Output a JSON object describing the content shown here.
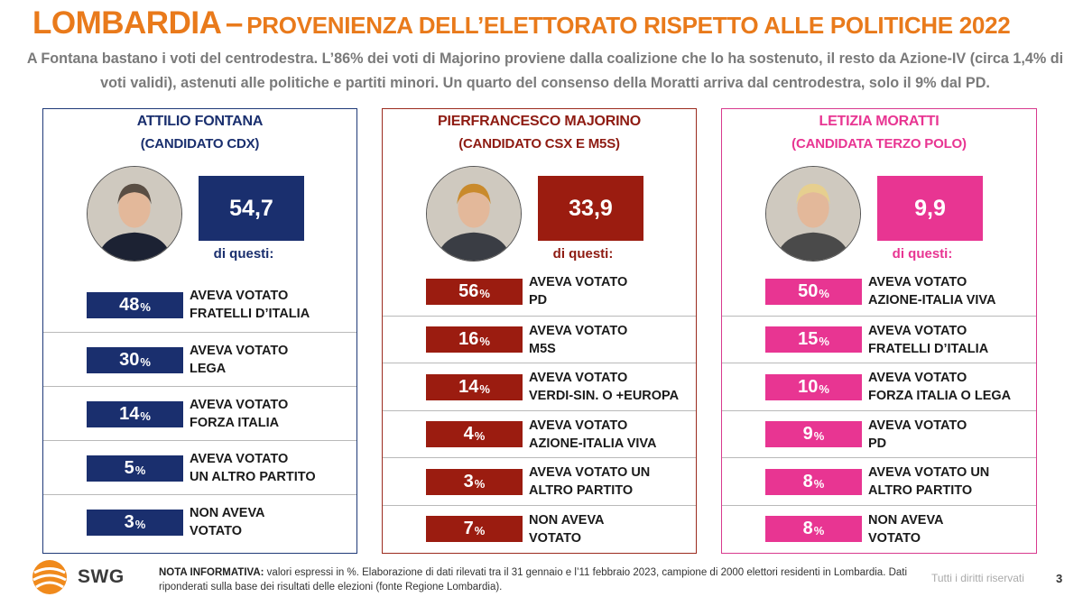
{
  "title": {
    "main": "LOMBARDIA",
    "dash": "–",
    "rest": "PROVENIENZA DELL’ELETTORATO RISPETTO ALLE POLITICHE 2022"
  },
  "subtitle": "A Fontana bastano i voti del centrodestra. L’86% dei voti di Majorino proviene dalla coalizione che lo ha sostenuto, il resto da Azione-IV (circa 1,4% di voti validi), astenuti alle politiche e partiti minori. Un quarto del consenso della Moratti arriva dal centrodestra, solo il 9% dal PD.",
  "colors": {
    "title": "#E97A1B",
    "fontana": "#1A2F6E",
    "majorino": "#9B1C10",
    "moratti": "#E83592"
  },
  "chart_data": [
    {
      "type": "table",
      "candidate": "ATTILIO FONTANA",
      "coalition": "(CANDIDATO CDX)",
      "total": "54,7",
      "of_these": "di questi:",
      "rows": [
        {
          "value": 48,
          "label": "AVEVA VOTATO\nFRATELLI D’ITALIA"
        },
        {
          "value": 30,
          "label": "AVEVA VOTATO\nLEGA"
        },
        {
          "value": 14,
          "label": "AVEVA VOTATO\nFORZA ITALIA"
        },
        {
          "value": 5,
          "label": "AVEVA VOTATO\nUN ALTRO PARTITO"
        },
        {
          "value": 3,
          "label": "NON AVEVA\nVOTATO"
        }
      ]
    },
    {
      "type": "table",
      "candidate": "PIERFRANCESCO MAJORINO",
      "coalition": "(CANDIDATO CSX E M5S)",
      "total": "33,9",
      "of_these": "di questi:",
      "rows": [
        {
          "value": 56,
          "label": "AVEVA VOTATO\nPD"
        },
        {
          "value": 16,
          "label": "AVEVA VOTATO\nM5S"
        },
        {
          "value": 14,
          "label": "AVEVA VOTATO\nVERDI-SIN. O +EUROPA"
        },
        {
          "value": 4,
          "label": "AVEVA VOTATO\nAZIONE-ITALIA VIVA"
        },
        {
          "value": 3,
          "label": "AVEVA VOTATO UN\nALTRO PARTITO"
        },
        {
          "value": 7,
          "label": "NON AVEVA\nVOTATO"
        }
      ]
    },
    {
      "type": "table",
      "candidate": "LETIZIA MORATTI",
      "coalition": "(CANDIDATA TERZO POLO)",
      "total": "9,9",
      "of_these": "di questi:",
      "rows": [
        {
          "value": 50,
          "label": "AVEVA VOTATO\nAZIONE-ITALIA VIVA"
        },
        {
          "value": 15,
          "label": "AVEVA VOTATO\nFRATELLI D’ITALIA"
        },
        {
          "value": 10,
          "label": "AVEVA VOTATO\nFORZA ITALIA O LEGA"
        },
        {
          "value": 9,
          "label": "AVEVA VOTATO\nPD"
        },
        {
          "value": 8,
          "label": "AVEVA VOTATO UN\nALTRO PARTITO"
        },
        {
          "value": 8,
          "label": "NON AVEVA\nVOTATO"
        }
      ]
    }
  ],
  "footer": {
    "brand": "SWG",
    "note_label": "NOTA INFORMATIVA:",
    "note_text": " valori espressi in %. Elaborazione di dati rilevati tra il 31 gennaio e l’11 febbraio 2023, campione di 2000 elettori residenti in Lombardia. Dati riponderati sulla base dei risultati delle elezioni (fonte Regione Lombardia).",
    "rights": "Tutti i diritti riservati",
    "page": "3"
  }
}
